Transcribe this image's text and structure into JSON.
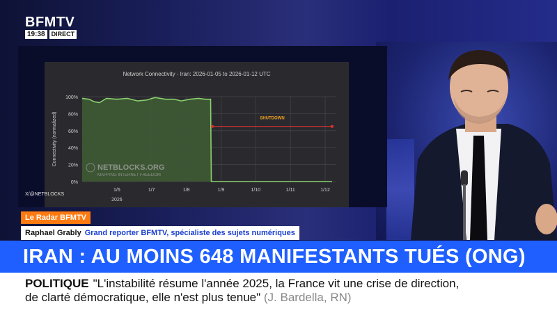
{
  "channel": {
    "brand": "BFMTV",
    "time": "19:38",
    "live": "DIRECT"
  },
  "chart_source": "X/@NETBLOCKS",
  "chart_data": {
    "type": "area",
    "title": "Network Connectivity - Iran: 2026-01-05 to 2026-01-12 UTC",
    "ylabel": "Connectivity (normalized)",
    "xlabel": "",
    "yticks": [
      "0%",
      "20%",
      "40%",
      "60%",
      "80%",
      "100%"
    ],
    "ylim": [
      0,
      100
    ],
    "xticks": [
      "1/6",
      "1/7",
      "1/8",
      "1/9",
      "1/10",
      "1/11",
      "1/12"
    ],
    "xsub": "2026",
    "annotation": "SHUTDOWN",
    "watermark": "NETBLOCKS.ORG",
    "watermark_sub": "MAPPING INTERNET FREEDOM",
    "series": [
      {
        "values": [
          [
            5.0,
            98
          ],
          [
            5.2,
            97
          ],
          [
            5.35,
            94
          ],
          [
            5.5,
            93
          ],
          [
            5.7,
            98
          ],
          [
            6.0,
            97
          ],
          [
            6.3,
            98
          ],
          [
            6.6,
            95
          ],
          [
            6.85,
            96
          ],
          [
            7.1,
            99
          ],
          [
            7.4,
            97
          ],
          [
            7.65,
            97
          ],
          [
            7.85,
            95
          ],
          [
            8.1,
            97
          ],
          [
            8.35,
            98
          ],
          [
            8.55,
            97
          ],
          [
            8.7,
            97
          ],
          [
            8.72,
            0
          ],
          [
            12.2,
            0
          ]
        ]
      }
    ],
    "shutdown_level": 65,
    "shutdown_range": [
      8.75,
      12.2
    ],
    "xlim": [
      5.0,
      12.3
    ],
    "colors": {
      "line": "#8bd16e",
      "fill": "#3e5a34",
      "shutdown": "#e03030",
      "grid": "#444448",
      "text": "#cfcfcf"
    }
  },
  "lower_third": {
    "tag": "Le Radar BFMTV",
    "name": "Raphael Grably",
    "role": "Grand reporter BFMTV, spécialiste des sujets numériques",
    "headline": "IRAN : AU MOINS 648 MANIFESTANTS TUÉS (ONG)"
  },
  "ticker": {
    "keyword": "POLITIQUE",
    "line1": "\"L'instabilité résume l'année 2025, la France vit une crise de direction,",
    "line2": "de clarté démocratique, elle n'est plus tenue\"",
    "attribution": "(J. Bardella, RN)"
  }
}
